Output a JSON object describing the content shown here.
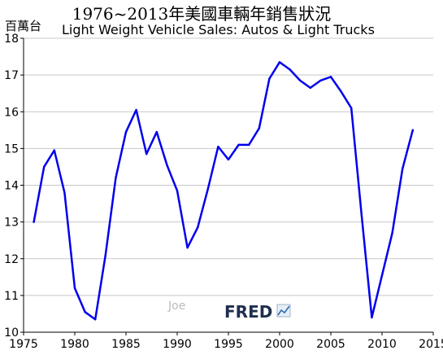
{
  "chart_data": {
    "type": "line",
    "title": "1976~2013年美國車輛年銷售狀況",
    "subtitle": "Light Weight Vehicle Sales: Autos & Light Trucks",
    "ylabel": "百萬台",
    "xlabel": "",
    "xlim": [
      1975,
      2015
    ],
    "ylim": [
      10,
      18
    ],
    "x_ticks": [
      "1975",
      "1980",
      "1985",
      "1990",
      "1995",
      "2000",
      "2005",
      "2010",
      "2015"
    ],
    "y_ticks": [
      "10",
      "11",
      "12",
      "13",
      "14",
      "15",
      "16",
      "17",
      "18"
    ],
    "grid": true,
    "line_color": "#0000ee",
    "series": [
      {
        "x": [
          1976,
          1977,
          1978,
          1979,
          1980,
          1981,
          1982,
          1983,
          1984,
          1985,
          1986,
          1987,
          1988,
          1989,
          1990,
          1991,
          1992,
          1993,
          1994,
          1995,
          1996,
          1997,
          1998,
          1999,
          2000,
          2001,
          2002,
          2003,
          2004,
          2005,
          2006,
          2007,
          2008,
          2009,
          2010,
          2011,
          2012,
          2013
        ],
        "values": [
          13.0,
          14.5,
          14.95,
          13.8,
          11.2,
          10.55,
          10.35,
          12.1,
          14.2,
          15.45,
          16.05,
          14.85,
          15.45,
          14.55,
          13.85,
          12.3,
          12.85,
          13.9,
          15.05,
          14.7,
          15.1,
          15.1,
          15.55,
          16.9,
          17.35,
          17.15,
          16.85,
          16.65,
          16.85,
          16.95,
          16.55,
          16.1,
          13.2,
          10.4,
          11.55,
          12.7,
          14.45,
          15.5
        ]
      }
    ]
  },
  "watermark": "Joe",
  "logo": {
    "text": "FRED",
    "icon": "line-chart-icon"
  }
}
